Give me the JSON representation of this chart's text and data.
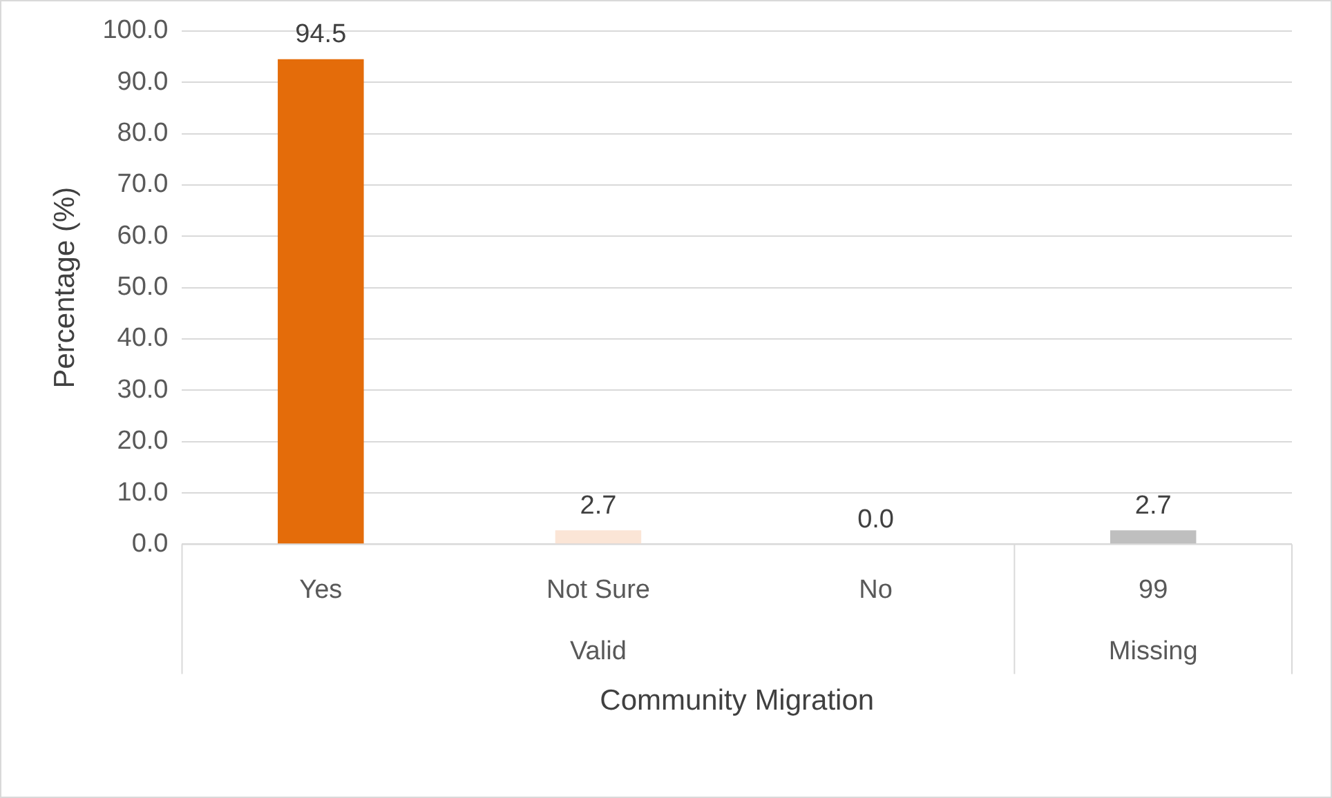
{
  "chart_data": {
    "type": "bar",
    "categories": [
      "Yes",
      "Not Sure",
      "No",
      "99"
    ],
    "values": [
      94.5,
      2.7,
      0.0,
      2.7
    ],
    "colors": [
      "#e46c0a",
      "#fbe5d6",
      "#fbe5d6",
      "#bfbfbf"
    ],
    "value_labels": [
      "94.5",
      "2.7",
      "0.0",
      "2.7"
    ],
    "ylabel": "Percentage (%)",
    "xlabel": "Community Migration",
    "ylim": [
      0,
      100
    ],
    "yticks": [
      {
        "value": 0,
        "label": "0.0"
      },
      {
        "value": 10,
        "label": "10.0"
      },
      {
        "value": 20,
        "label": "20.0"
      },
      {
        "value": 30,
        "label": "30.0"
      },
      {
        "value": 40,
        "label": "40.0"
      },
      {
        "value": 50,
        "label": "50.0"
      },
      {
        "value": 60,
        "label": "60.0"
      },
      {
        "value": 70,
        "label": "70.0"
      },
      {
        "value": 80,
        "label": "80.0"
      },
      {
        "value": 90,
        "label": "90.0"
      },
      {
        "value": 100,
        "label": "100.0"
      }
    ],
    "annotations": [
      "Valid",
      "Missing"
    ],
    "grid": "y",
    "legend": false
  }
}
